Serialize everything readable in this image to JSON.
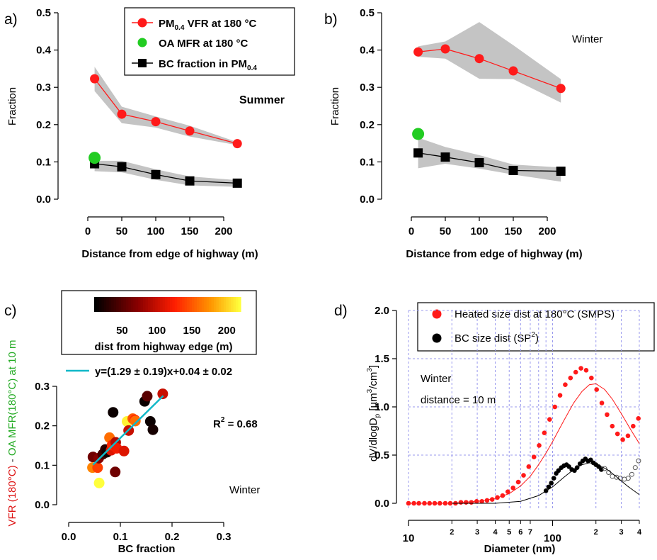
{
  "chart_data": [
    {
      "panel": "a)",
      "type": "line",
      "annotation": "Summer",
      "ylabel": "Fraction",
      "xlabel": "Distance from edge of highway (m)",
      "xlim": [
        -20,
        250
      ],
      "ylim": [
        -0.02,
        0.5
      ],
      "xticks": [
        "0",
        "50",
        "100",
        "150",
        "200"
      ],
      "yticks": [
        "0.0",
        "0.1",
        "0.2",
        "0.3",
        "0.4",
        "0.5"
      ],
      "legend_position": "top-right",
      "legend": [
        {
          "pre": "PM",
          "sub": "0.4",
          "post": " VFR at 180 °C",
          "marker": "circle-line",
          "color": "#ff1a1a"
        },
        {
          "pre": "OA MFR  at 180 °C",
          "sub": "",
          "post": "",
          "marker": "circle",
          "color": "#22cc22"
        },
        {
          "pre": "BC fraction in PM",
          "sub": "0.4",
          "post": "",
          "marker": "square-line",
          "color": "#000000"
        }
      ],
      "series": [
        {
          "name": "PM0.4 VFR at 180 °C",
          "color": "#ff1a1a",
          "x": [
            10,
            50,
            100,
            150,
            220
          ],
          "y": [
            0.323,
            0.228,
            0.208,
            0.183,
            0.149
          ],
          "band_low": [
            0.29,
            0.204,
            0.192,
            0.168,
            0.145
          ],
          "band_high": [
            0.355,
            0.248,
            0.222,
            0.197,
            0.153
          ]
        },
        {
          "name": "BC fraction in PM0.4",
          "color": "#000000",
          "x": [
            10,
            50,
            100,
            150,
            220
          ],
          "y": [
            0.095,
            0.087,
            0.066,
            0.049,
            0.043
          ],
          "band_low": [
            0.075,
            0.072,
            0.052,
            0.037,
            0.033
          ],
          "band_high": [
            0.103,
            0.103,
            0.08,
            0.061,
            0.051
          ]
        },
        {
          "name": "OA MFR at 180 °C",
          "color": "#22cc22",
          "x": [
            10
          ],
          "y": [
            0.111
          ]
        }
      ]
    },
    {
      "panel": "b)",
      "type": "line",
      "annotation": "Winter",
      "ylabel": "Fraction",
      "xlabel": "Distance from edge of highway (m)",
      "xlim": [
        -20,
        250
      ],
      "ylim": [
        -0.02,
        0.5
      ],
      "xticks": [
        "0",
        "50",
        "100",
        "150",
        "200"
      ],
      "yticks": [
        "0.0",
        "0.1",
        "0.2",
        "0.3",
        "0.4",
        "0.5"
      ],
      "series": [
        {
          "name": "PM0.4 VFR at 180 °C",
          "color": "#ff1a1a",
          "x": [
            10,
            50,
            100,
            150,
            220
          ],
          "y": [
            0.395,
            0.403,
            0.377,
            0.344,
            0.297
          ],
          "band_low": [
            0.382,
            0.377,
            0.323,
            0.322,
            0.259
          ],
          "band_high": [
            0.41,
            0.423,
            0.475,
            0.413,
            0.322
          ]
        },
        {
          "name": "BC fraction in PM0.4",
          "color": "#000000",
          "x": [
            10,
            50,
            100,
            150,
            220
          ],
          "y": [
            0.124,
            0.113,
            0.098,
            0.077,
            0.075
          ],
          "band_low": [
            0.083,
            0.095,
            0.082,
            0.066,
            0.047
          ],
          "band_high": [
            0.165,
            0.14,
            0.118,
            0.093,
            0.085
          ]
        },
        {
          "name": "OA MFR at 180 °C",
          "color": "#22cc22",
          "x": [
            10
          ],
          "y": [
            0.175
          ]
        }
      ]
    },
    {
      "panel": "c)",
      "type": "scatter",
      "annotation": "Winter",
      "xlabel": "BC fraction",
      "ylabel_parts": [
        "VFR (180°C)",
        " - ",
        "OA MFR(180°C) at 10 m"
      ],
      "ylabel_colors": [
        "#dd1111",
        "#333333",
        "#22aa22"
      ],
      "xlim": [
        -0.02,
        0.32
      ],
      "ylim": [
        -0.02,
        0.32
      ],
      "xticks": [
        "0.0",
        "0.1",
        "0.2",
        "0.3"
      ],
      "yticks": [
        "0.0",
        "0.1",
        "0.2",
        "0.3"
      ],
      "colorbar": {
        "label": "dist from highway edge (m)",
        "ticks": [
          "50",
          "100",
          "150",
          "200"
        ],
        "range": [
          10,
          220
        ]
      },
      "fit": {
        "label": "y=(1.29 ± 0.19)x+0.04 ± 0.02",
        "r2_text": "R",
        "r2_sup": "2",
        "r2_value": " = 0.68",
        "x": [
          0.047,
          0.183
        ],
        "y": [
          0.101,
          0.276
        ],
        "color": "#11b8c8"
      },
      "points": [
        {
          "x": 0.047,
          "y": 0.121,
          "d": 60
        },
        {
          "x": 0.046,
          "y": 0.094,
          "d": 170
        },
        {
          "x": 0.056,
          "y": 0.094,
          "d": 140
        },
        {
          "x": 0.059,
          "y": 0.055,
          "d": 220
        },
        {
          "x": 0.058,
          "y": 0.118,
          "d": 70
        },
        {
          "x": 0.066,
          "y": 0.128,
          "d": 40
        },
        {
          "x": 0.071,
          "y": 0.14,
          "d": 30
        },
        {
          "x": 0.074,
          "y": 0.133,
          "d": 20
        },
        {
          "x": 0.079,
          "y": 0.17,
          "d": 160
        },
        {
          "x": 0.082,
          "y": 0.138,
          "d": 110
        },
        {
          "x": 0.084,
          "y": 0.151,
          "d": 130
        },
        {
          "x": 0.086,
          "y": 0.234,
          "d": 15
        },
        {
          "x": 0.09,
          "y": 0.083,
          "d": 60
        },
        {
          "x": 0.091,
          "y": 0.158,
          "d": 90
        },
        {
          "x": 0.093,
          "y": 0.143,
          "d": 120
        },
        {
          "x": 0.107,
          "y": 0.136,
          "d": 110
        },
        {
          "x": 0.113,
          "y": 0.211,
          "d": 215
        },
        {
          "x": 0.116,
          "y": 0.188,
          "d": 100
        },
        {
          "x": 0.124,
          "y": 0.218,
          "d": 150
        },
        {
          "x": 0.128,
          "y": 0.215,
          "d": 130
        },
        {
          "x": 0.129,
          "y": 0.212,
          "d": 160
        },
        {
          "x": 0.147,
          "y": 0.262,
          "d": 15
        },
        {
          "x": 0.152,
          "y": 0.275,
          "d": 50
        },
        {
          "x": 0.158,
          "y": 0.211,
          "d": 15
        },
        {
          "x": 0.163,
          "y": 0.19,
          "d": 20
        },
        {
          "x": 0.182,
          "y": 0.281,
          "d": 100
        }
      ]
    },
    {
      "panel": "d)",
      "type": "scatter",
      "annotation_lines": [
        "Winter",
        "distance = 10 m"
      ],
      "xlabel": "Diameter (nm)",
      "ylabel_main": "dV/dlogD",
      "ylabel_sub": "p",
      "ylabel_mid": " [µm",
      "ylabel_sup1": "3",
      "ylabel_mid2": "/cm",
      "ylabel_sup2": "3",
      "ylabel_end": "]",
      "x_scale": "log",
      "xlim": [
        10,
        400
      ],
      "ylim": [
        -0.1,
        2.0
      ],
      "yticks": [
        "0.0",
        "0.5",
        "1.0",
        "1.5",
        "2.0"
      ],
      "xticks_major": [
        {
          "v": 10,
          "label": "10"
        },
        {
          "v": 100,
          "label": "100"
        }
      ],
      "xticks_minor": [
        {
          "v": 20,
          "label": "2"
        },
        {
          "v": 30,
          "label": "3"
        },
        {
          "v": 40,
          "label": "4"
        },
        {
          "v": 50,
          "label": "5"
        },
        {
          "v": 60,
          "label": "6"
        },
        {
          "v": 70,
          "label": "7"
        },
        {
          "v": 200,
          "label": "2"
        },
        {
          "v": 300,
          "label": "3"
        },
        {
          "v": 400,
          "label": "4"
        }
      ],
      "legend_position": "top-right",
      "legend": [
        {
          "text": "Heated size dist at 180°C (SMPS)",
          "sup": "",
          "tail": "",
          "color": "#ff1a1a"
        },
        {
          "text": "BC size dist (SP",
          "sup": "2",
          "tail": ")",
          "color": "#000000"
        }
      ],
      "series": [
        {
          "name": "Heated size dist at 180°C (SMPS)",
          "color": "#ff1a1a",
          "x": [
            10.0,
            10.9,
            11.8,
            12.9,
            14.0,
            15.2,
            16.5,
            18.0,
            19.5,
            21.2,
            23.1,
            25.1,
            27.3,
            29.7,
            32.3,
            35.1,
            38.1,
            41.4,
            45.0,
            48.9,
            53.2,
            57.8,
            62.9,
            68.3,
            74.3,
            80.7,
            87.7,
            95.4,
            103.7,
            112.7,
            122.5,
            133.2,
            144.8,
            157.4,
            171.1,
            186.0,
            202.2,
            219.8,
            238.9,
            259.7,
            282.3,
            306.9,
            333.6,
            362.6,
            394.2
          ],
          "y": [
            0.0,
            0.0,
            0.0,
            0.0,
            0.0,
            0.0,
            0.0,
            0.0,
            0.0,
            0.0,
            0.01,
            0.01,
            0.01,
            0.02,
            0.02,
            0.03,
            0.04,
            0.06,
            0.08,
            0.12,
            0.16,
            0.22,
            0.29,
            0.38,
            0.48,
            0.6,
            0.73,
            0.87,
            1.0,
            1.12,
            1.23,
            1.3,
            1.36,
            1.4,
            1.38,
            1.3,
            1.18,
            1.04,
            0.92,
            0.8,
            0.72,
            0.66,
            0.7,
            0.8,
            0.88
          ]
        },
        {
          "name": "Heated fit",
          "color": "#ff1a1a",
          "line": true,
          "x": [
            10,
            20,
            30,
            40,
            50,
            60,
            70,
            80,
            90,
            100,
            120,
            140,
            160,
            180,
            200,
            230,
            260,
            300,
            350,
            400
          ],
          "y": [
            0.0,
            0.0,
            0.02,
            0.05,
            0.1,
            0.18,
            0.28,
            0.4,
            0.52,
            0.64,
            0.86,
            1.04,
            1.16,
            1.23,
            1.24,
            1.18,
            1.08,
            0.93,
            0.76,
            0.62
          ]
        },
        {
          "name": "BC size dist (SP2)",
          "color": "#000000",
          "x": [
            90,
            94,
            98,
            102,
            106,
            110,
            115,
            120,
            125,
            130,
            136,
            142,
            148,
            155,
            162,
            169,
            176,
            184,
            192,
            200,
            209,
            218
          ],
          "y": [
            0.13,
            0.17,
            0.21,
            0.26,
            0.31,
            0.34,
            0.37,
            0.39,
            0.4,
            0.38,
            0.35,
            0.34,
            0.37,
            0.41,
            0.44,
            0.46,
            0.44,
            0.45,
            0.42,
            0.4,
            0.38,
            0.35
          ]
        },
        {
          "name": "BC open",
          "color": "#555555",
          "open": true,
          "x": [
            230,
            245,
            260,
            278,
            296,
            315,
            335,
            355,
            375,
            395
          ],
          "y": [
            0.36,
            0.32,
            0.28,
            0.27,
            0.26,
            0.25,
            0.26,
            0.3,
            0.37,
            0.44
          ]
        },
        {
          "name": "BC fit",
          "color": "#000000",
          "line": true,
          "x": [
            20,
            40,
            60,
            80,
            100,
            120,
            140,
            160,
            180,
            200,
            240,
            280,
            330,
            400
          ],
          "y": [
            0.0,
            0.0,
            0.02,
            0.08,
            0.17,
            0.27,
            0.35,
            0.4,
            0.42,
            0.41,
            0.35,
            0.27,
            0.18,
            0.09
          ]
        }
      ]
    }
  ]
}
